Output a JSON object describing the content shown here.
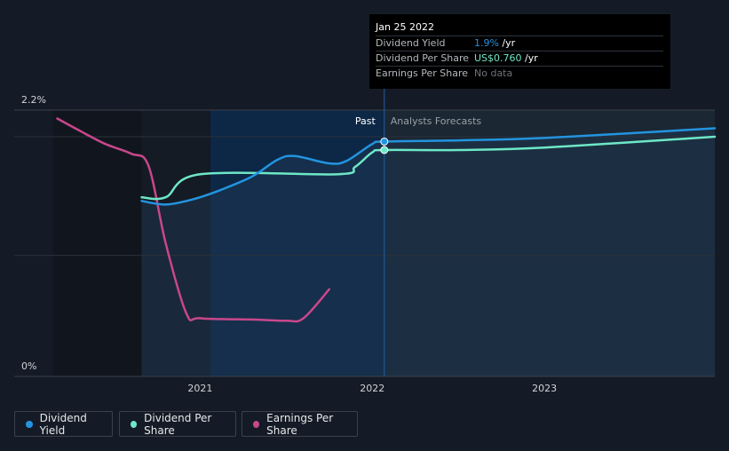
{
  "chart_data": {
    "type": "line",
    "ylim": [
      0,
      2.2
    ],
    "y_ticks": [
      {
        "value": 2.2,
        "label": "2.2%"
      },
      {
        "value": 0,
        "label": "0%"
      }
    ],
    "x_ticks": [
      {
        "value": 2021.0,
        "label": "2021"
      },
      {
        "value": 2022.0,
        "label": "2022"
      },
      {
        "value": 2023.0,
        "label": "2023"
      }
    ],
    "xlim": [
      2019.92,
      2023.99
    ],
    "past_range": [
      2021.06,
      2022.07
    ],
    "present": 2022.07,
    "regions": {
      "past_label": "Past",
      "forecast_label": "Analysts Forecasts"
    },
    "series": [
      {
        "name": "Dividend Yield",
        "key": "yield",
        "color": "#2394df",
        "points": [
          [
            2020.66,
            1.45
          ],
          [
            2020.8,
            1.42
          ],
          [
            2020.95,
            1.46
          ],
          [
            2021.1,
            1.53
          ],
          [
            2021.3,
            1.65
          ],
          [
            2021.45,
            1.79
          ],
          [
            2021.55,
            1.82
          ],
          [
            2021.75,
            1.76
          ],
          [
            2021.85,
            1.78
          ],
          [
            2022.0,
            1.92
          ],
          [
            2022.07,
            1.94
          ],
          [
            2022.5,
            1.95
          ],
          [
            2023.0,
            1.97
          ],
          [
            2023.99,
            2.05
          ]
        ]
      },
      {
        "name": "Dividend Per Share",
        "key": "dps",
        "color": "#6ee7c7",
        "points": [
          [
            2020.66,
            1.48
          ],
          [
            2020.8,
            1.48
          ],
          [
            2021.0,
            1.67
          ],
          [
            2021.8,
            1.67
          ],
          [
            2021.9,
            1.73
          ],
          [
            2022.0,
            1.85
          ],
          [
            2022.07,
            1.87
          ],
          [
            2022.5,
            1.87
          ],
          [
            2023.0,
            1.89
          ],
          [
            2023.99,
            1.98
          ]
        ]
      },
      {
        "name": "Earnings Per Share",
        "key": "eps",
        "color": "#c9478b",
        "points": [
          [
            2020.17,
            2.13
          ],
          [
            2020.3,
            2.03
          ],
          [
            2020.45,
            1.92
          ],
          [
            2020.6,
            1.84
          ],
          [
            2020.7,
            1.74
          ],
          [
            2020.8,
            1.1
          ],
          [
            2020.92,
            0.52
          ],
          [
            2021.0,
            0.48
          ],
          [
            2021.3,
            0.47
          ],
          [
            2021.5,
            0.46
          ],
          [
            2021.6,
            0.48
          ],
          [
            2021.75,
            0.72
          ]
        ]
      }
    ]
  },
  "tooltip": {
    "date": "Jan 25 2022",
    "rows": [
      {
        "label": "Dividend Yield",
        "value": "1.9%",
        "unit": " /yr",
        "color": "#2394df"
      },
      {
        "label": "Dividend Per Share",
        "value": "US$0.760",
        "unit": " /yr",
        "color": "#6ee7c7"
      },
      {
        "label": "Earnings Per Share",
        "value": "No data",
        "unit": "",
        "color": "#6e7379"
      }
    ]
  },
  "legend": [
    {
      "label": "Dividend Yield",
      "color": "#2394df"
    },
    {
      "label": "Dividend Per Share",
      "color": "#6ee7c7"
    },
    {
      "label": "Earnings Per Share",
      "color": "#c9478b"
    }
  ]
}
